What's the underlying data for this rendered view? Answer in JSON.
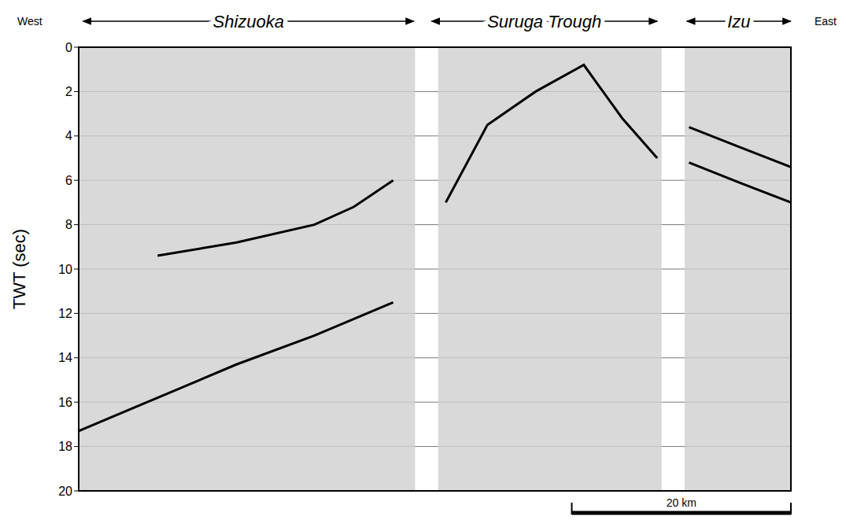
{
  "chart_data": {
    "type": "line",
    "header": {
      "left": "West",
      "right": "East"
    },
    "y_label": "TWT (sec)",
    "xlim": [
      0,
      65
    ],
    "ylim": [
      20,
      0
    ],
    "yticks": [
      0,
      2,
      4,
      6,
      8,
      10,
      12,
      14,
      16,
      18,
      20
    ],
    "tick_labels": "y",
    "grid": true,
    "regions": [
      {
        "label": "Shizuoka",
        "x": [
          0.4,
          30.6
        ]
      },
      {
        "label": "Suruga Trough",
        "x": [
          32.2,
          52.8
        ]
      },
      {
        "label": "Izu",
        "x": [
          55.5,
          65
        ]
      }
    ],
    "panels": [
      {
        "x": [
          0,
          30.7
        ]
      },
      {
        "x": [
          32.8,
          53.2
        ]
      },
      {
        "x": [
          55.3,
          65
        ]
      }
    ],
    "series": [
      {
        "color": "#000000",
        "x": [
          7.2,
          14.4,
          21.5,
          25.1,
          28.7
        ],
        "values": [
          9.4,
          8.8,
          8.0,
          7.2,
          6.0
        ]
      },
      {
        "color": "#000000",
        "x": [
          0,
          7.2,
          14.4,
          21.5,
          28.7
        ],
        "values": [
          17.3,
          15.8,
          14.3,
          13.0,
          11.5
        ]
      },
      {
        "color": "#000000",
        "x": [
          33.5,
          37.3,
          41.7,
          46.1,
          49.6,
          52.8
        ],
        "values": [
          7.0,
          3.5,
          2.0,
          0.8,
          3.2,
          5.0
        ]
      },
      {
        "color": "#000000",
        "x": [
          55.7,
          60.3,
          65
        ],
        "values": [
          3.6,
          4.5,
          5.4
        ]
      },
      {
        "color": "#000000",
        "x": [
          55.7,
          60.3,
          65
        ],
        "values": [
          5.2,
          6.1,
          7.0
        ]
      }
    ],
    "scale_bar": {
      "label": "20 km",
      "x": [
        45,
        65
      ]
    }
  }
}
